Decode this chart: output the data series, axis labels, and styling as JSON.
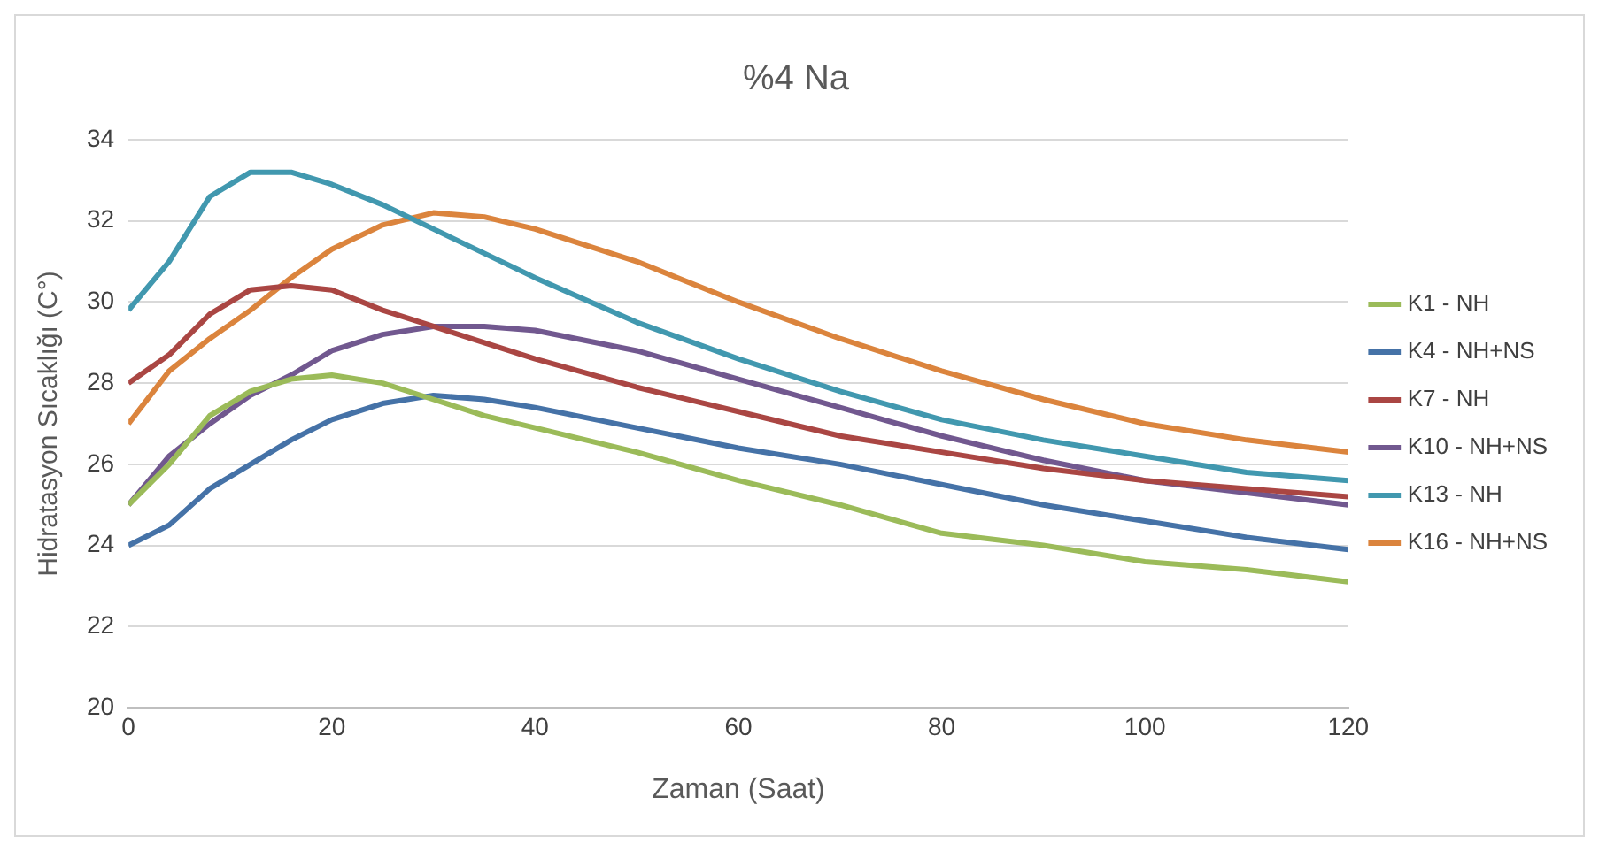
{
  "chart_data": {
    "type": "line",
    "title": "%4 Na",
    "xlabel": "Zaman (Saat)",
    "ylabel": "Hidratasyon Sıcaklığı (C°)",
    "x": [
      0,
      4,
      8,
      12,
      16,
      20,
      25,
      30,
      35,
      40,
      50,
      60,
      70,
      80,
      90,
      100,
      110,
      120
    ],
    "series": [
      {
        "name": "K1 - NH",
        "color": "#9bbb59",
        "values": [
          25,
          26,
          27.2,
          27.8,
          28.1,
          28.2,
          28,
          27.6,
          27.2,
          26.9,
          26.3,
          25.6,
          25,
          24.3,
          24,
          23.6,
          23.4,
          23.1
        ]
      },
      {
        "name": "K4 - NH+NS",
        "color": "#4572a7",
        "values": [
          24,
          24.5,
          25.4,
          26,
          26.6,
          27.1,
          27.5,
          27.7,
          27.6,
          27.4,
          26.9,
          26.4,
          26,
          25.5,
          25,
          24.6,
          24.2,
          23.9
        ]
      },
      {
        "name": "K7 - NH",
        "color": "#aa4643",
        "values": [
          28,
          28.7,
          29.7,
          30.3,
          30.4,
          30.3,
          29.8,
          29.4,
          29,
          28.6,
          27.9,
          27.3,
          26.7,
          26.3,
          25.9,
          25.6,
          25.4,
          25.2
        ]
      },
      {
        "name": "K10 - NH+NS",
        "color": "#71588f",
        "values": [
          25,
          26.2,
          27,
          27.7,
          28.2,
          28.8,
          29.2,
          29.4,
          29.4,
          29.3,
          28.8,
          28.1,
          27.4,
          26.7,
          26.1,
          25.6,
          25.3,
          25
        ]
      },
      {
        "name": "K13 - NH",
        "color": "#4198af",
        "values": [
          29.8,
          31,
          32.6,
          33.2,
          33.2,
          32.9,
          32.4,
          31.8,
          31.2,
          30.6,
          29.5,
          28.6,
          27.8,
          27.1,
          26.6,
          26.2,
          25.8,
          25.6
        ]
      },
      {
        "name": "K16 - NH+NS",
        "color": "#db843d",
        "values": [
          27,
          28.3,
          29.1,
          29.8,
          30.6,
          31.3,
          31.9,
          32.2,
          32.1,
          31.8,
          31,
          30,
          29.1,
          28.3,
          27.6,
          27,
          26.6,
          26.3
        ]
      }
    ],
    "xlim": [
      0,
      120
    ],
    "xticks": [
      0,
      20,
      40,
      60,
      80,
      100,
      120
    ],
    "ylim": [
      20,
      34
    ],
    "yticks": [
      20,
      22,
      24,
      26,
      28,
      30,
      32,
      34
    ],
    "grid": "y",
    "legend": "right",
    "marker": "none",
    "line_style": "solid"
  }
}
